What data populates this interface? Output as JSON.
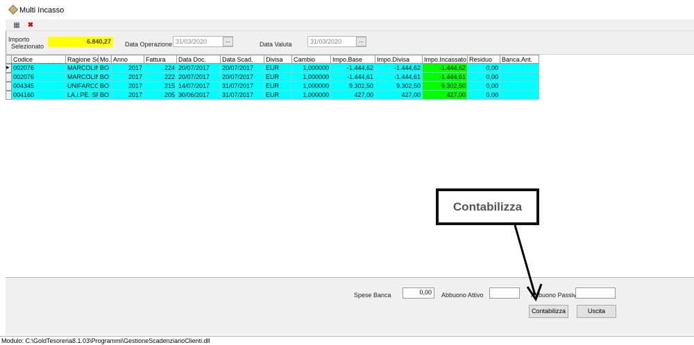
{
  "window": {
    "title": "Multi Incasso",
    "icon": "diamond-app-icon"
  },
  "toolbar": {
    "buttons": [
      {
        "icon": "properties-icon"
      },
      {
        "icon": "close-red-x-icon"
      }
    ]
  },
  "header": {
    "importo_label_1": "Importo",
    "importo_label_2": "Selezionato",
    "importo_value": "6.840,27",
    "data_operazione_label": "Data Operazione",
    "data_operazione_value": "31/03/2020",
    "data_valuta_label": "Data Valuta",
    "data_valuta_value": "31/03/2020",
    "picker_label": "..."
  },
  "grid": {
    "columns": [
      "Codice",
      "Ragione Sc",
      "Mo.I.",
      "Anno",
      "Fattura",
      "Data Doc.",
      "Data Scad.",
      "Divisa",
      "Cambio",
      "Impo.Base",
      "Impo.Divisa",
      "Impo.Incassato",
      "Residuo",
      "Banca.Ant."
    ],
    "rows": [
      [
        "002076",
        "MARCOLIN",
        "BO",
        "2017",
        "224",
        "20/07/2017",
        "20/07/2017",
        "EUR",
        "1,000000",
        "-1.444,62",
        "-1.444,62",
        "-1.444,62",
        "0,00",
        ""
      ],
      [
        "002076",
        "MARCOLIN",
        "BO",
        "2017",
        "222",
        "20/07/2017",
        "20/07/2017",
        "EUR",
        "1,000000",
        "-1.444,61",
        "-1.444,61",
        "-1.444,61",
        "0,00",
        ""
      ],
      [
        "004345",
        "UNIFARCO",
        "BO",
        "2017",
        "215",
        "14/07/2017",
        "31/07/2017",
        "EUR",
        "1,000000",
        "9.302,50",
        "9.302,50",
        "9.302,50",
        "0,00",
        ""
      ],
      [
        "004160",
        "LA.I.PE. SP.",
        "BO",
        "2017",
        "205",
        "30/06/2017",
        "31/07/2017",
        "EUR",
        "1,000000",
        "427,00",
        "427,00",
        "427,00",
        "0,00",
        ""
      ]
    ],
    "colors": {
      "row": "#00ffff",
      "incassato": "#00ff00",
      "importo": "#ffff00"
    }
  },
  "footer": {
    "spese_banca_label": "Spese Banca",
    "spese_banca_value": "0,00",
    "abbuono_attivo_label": "Abbuono Attivo",
    "abbuono_attivo_value": "",
    "abbuono_passivo_label": "Abbuono Passivo",
    "abbuono_passivo_value": "",
    "contabilizza_label": "Contabilizza",
    "uscita_label": "Uscita"
  },
  "status": "Modulo: C:\\GoldTesoreria8.1.03\\Programmi\\GestioneScadenziarioClienti.dll",
  "annotation": {
    "label": "Contabilizza"
  }
}
